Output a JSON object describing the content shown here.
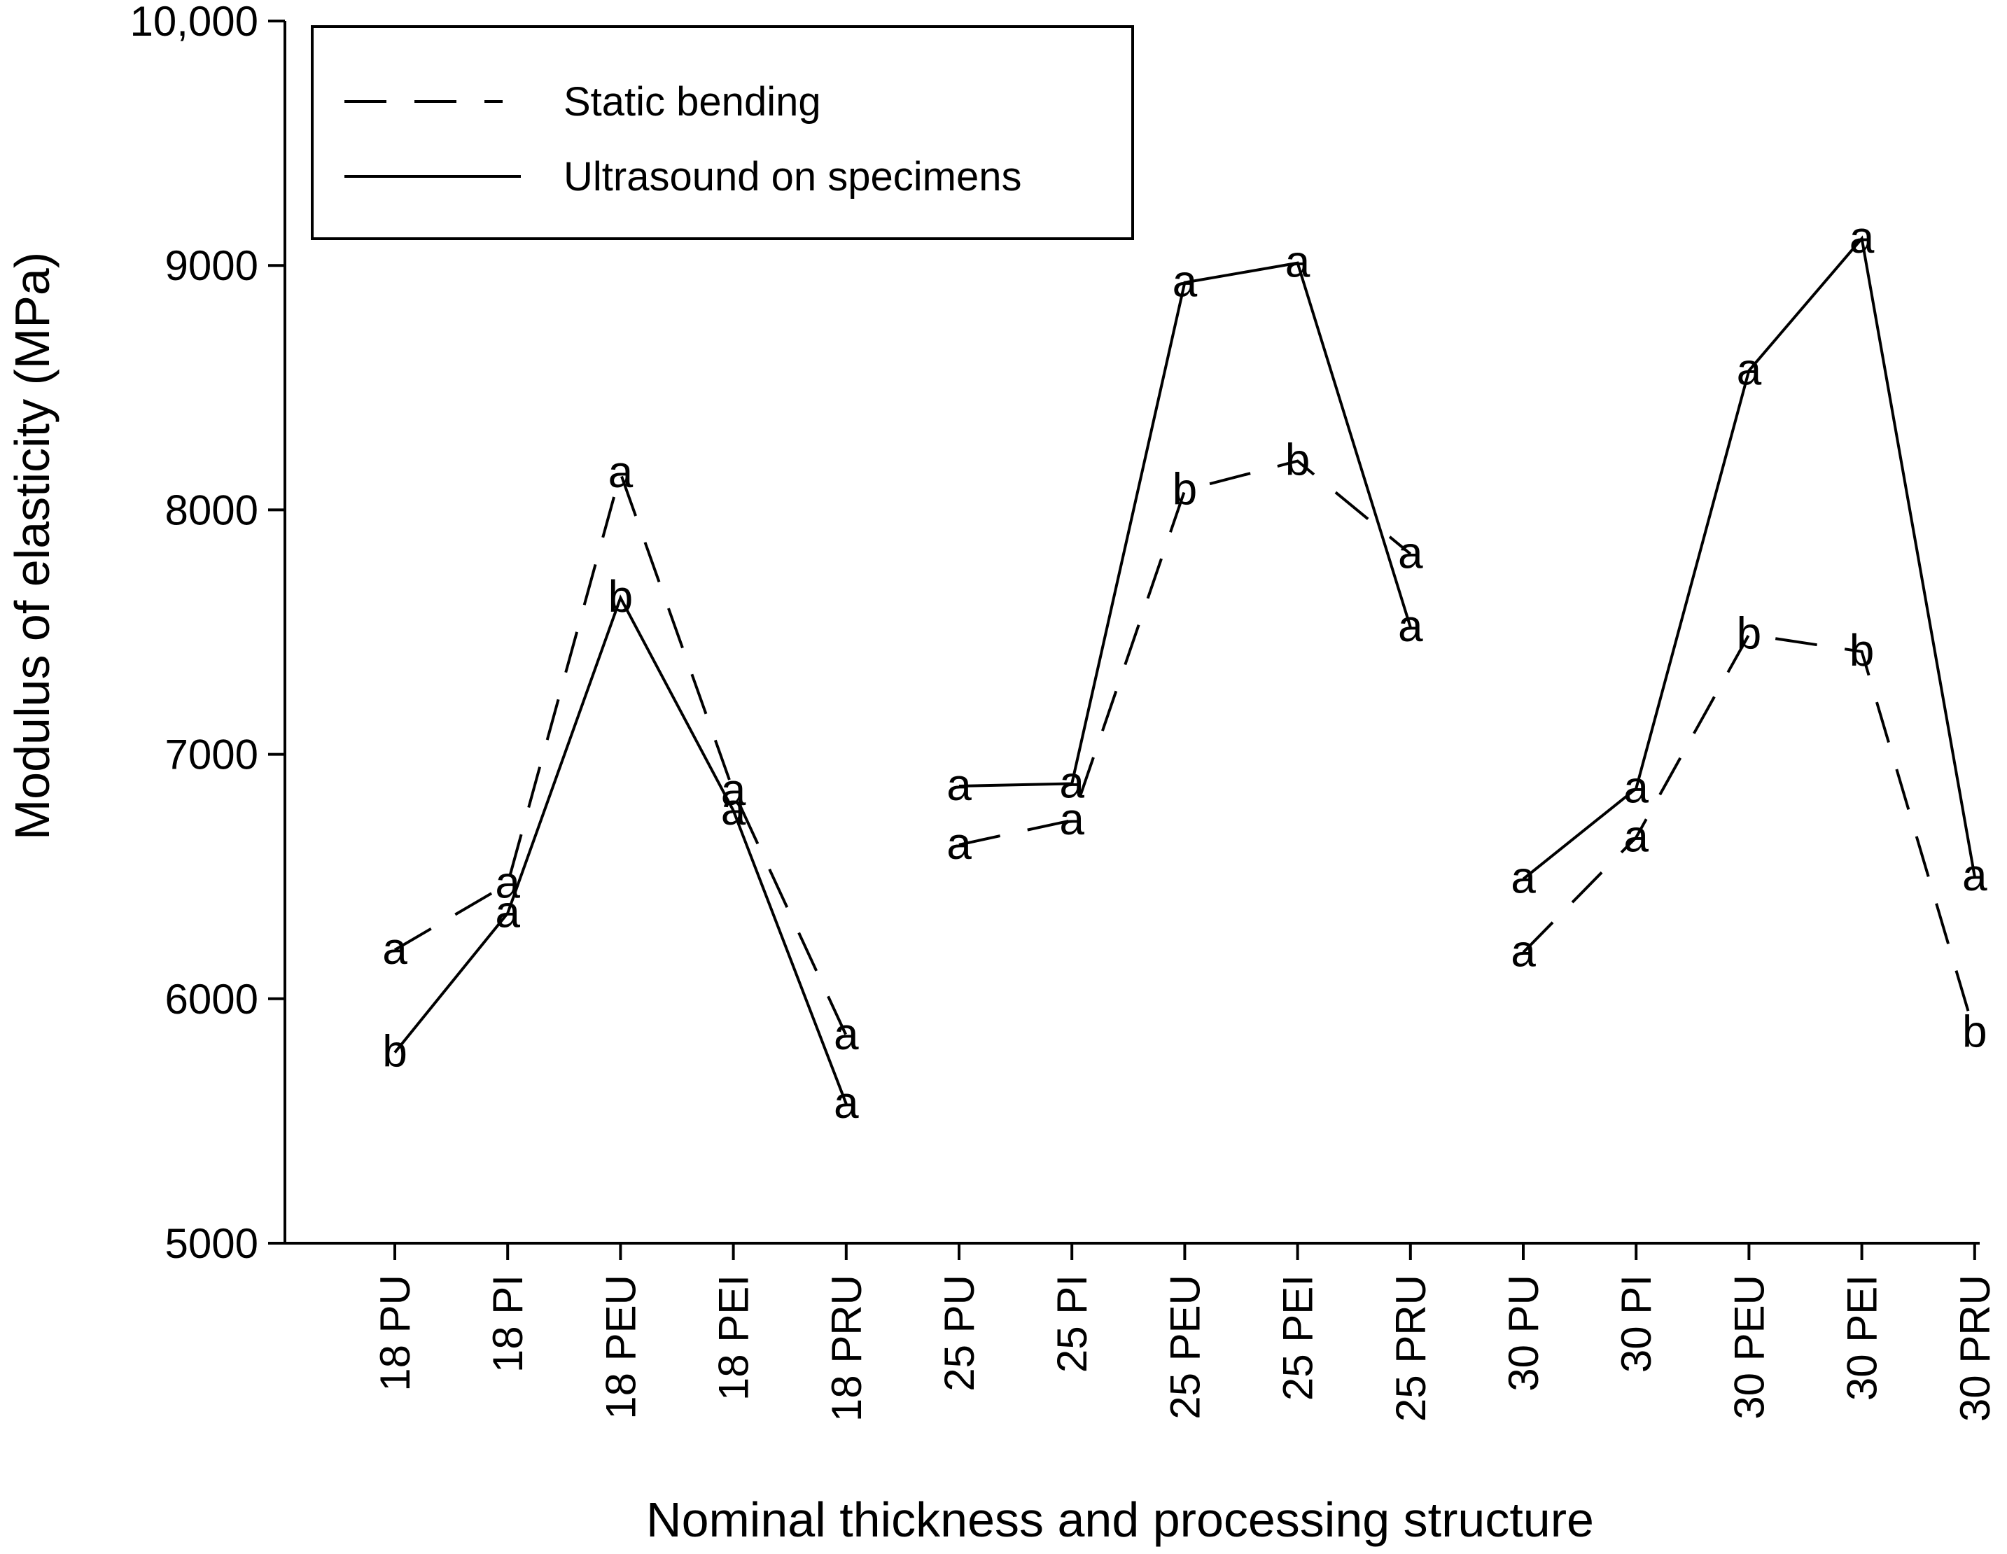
{
  "chart_data": {
    "type": "line",
    "title": "",
    "xlabel": "Nominal thickness and processing structure",
    "ylabel": "Modulus of elasticity (MPa)",
    "ylim": [
      5000,
      10000
    ],
    "yticks": [
      5000,
      6000,
      7000,
      8000,
      9000,
      10000
    ],
    "ytick_labels": [
      "5000",
      "6000",
      "7000",
      "8000",
      "9000",
      "10,000"
    ],
    "categories": [
      "18 PU",
      "18 PI",
      "18 PEU",
      "18 PEI",
      "18 PRU",
      "25 PU",
      "25 PI",
      "25 PEU",
      "25 PEI",
      "25 PRU",
      "30 PU",
      "30 PI",
      "30 PEU",
      "30 PEI",
      "30 PRU"
    ],
    "groups": [
      [
        0,
        4
      ],
      [
        5,
        9
      ],
      [
        10,
        14
      ]
    ],
    "grid": false,
    "legend_position": "top-left",
    "series": [
      {
        "name": "Static bending",
        "style": "dashed",
        "values": [
          6200,
          6470,
          8150,
          6850,
          5850,
          6630,
          6730,
          8080,
          8200,
          7820,
          6190,
          6660,
          7490,
          7420,
          5860
        ],
        "letters": [
          "a",
          "a",
          "a",
          "a",
          "a",
          "a",
          "a",
          "b",
          "b",
          "a",
          "a",
          "a",
          "b",
          "b",
          "b"
        ]
      },
      {
        "name": "Ultrasound on specimens",
        "style": "solid",
        "values": [
          5780,
          6350,
          7640,
          6770,
          5570,
          6870,
          6880,
          8930,
          9010,
          7520,
          6490,
          6860,
          8570,
          9110,
          6500
        ],
        "letters": [
          "b",
          "a",
          "b",
          "a",
          "a",
          "a",
          "a",
          "a",
          "a",
          "a",
          "a",
          "a",
          "a",
          "a",
          "a"
        ]
      }
    ]
  }
}
